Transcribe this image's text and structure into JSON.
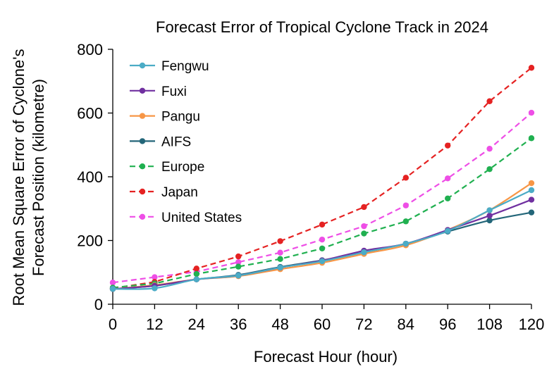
{
  "chart_data": {
    "type": "line",
    "title": "Forecast Error of Tropical Cyclone Track in 2024",
    "xlabel": "Forecast Hour (hour)",
    "ylabel_line1": "Root Mean Square Error of Cyclone's",
    "ylabel_line2": "Forecast Position (kilometre)",
    "x": [
      0,
      12,
      24,
      36,
      48,
      60,
      72,
      84,
      96,
      108,
      120
    ],
    "xlim": [
      0,
      120
    ],
    "ylim": [
      0,
      800
    ],
    "yticks": [
      0,
      200,
      400,
      600,
      800
    ],
    "grid": false,
    "legend_position": "top-left",
    "series": [
      {
        "name": "Fengwu",
        "color": "#4bacc6",
        "style": "solid",
        "smooth": true,
        "values": [
          48,
          50,
          78,
          90,
          115,
          135,
          163,
          190,
          230,
          295,
          358
        ]
      },
      {
        "name": "Fuxi",
        "color": "#7030a0",
        "style": "solid",
        "smooth": true,
        "values": [
          48,
          58,
          78,
          90,
          115,
          137,
          168,
          190,
          233,
          278,
          328
        ]
      },
      {
        "name": "Pangu",
        "color": "#f79646",
        "style": "solid",
        "smooth": true,
        "values": [
          48,
          60,
          78,
          88,
          110,
          130,
          158,
          185,
          233,
          295,
          380
        ]
      },
      {
        "name": "AIFS",
        "color": "#236679",
        "style": "solid",
        "smooth": true,
        "values": [
          48,
          58,
          78,
          92,
          117,
          138,
          163,
          190,
          228,
          263,
          288
        ]
      },
      {
        "name": "Europe",
        "color": "#20b050",
        "style": "dashed",
        "smooth": false,
        "values": [
          52,
          65,
          95,
          118,
          142,
          175,
          222,
          260,
          332,
          424,
          521
        ]
      },
      {
        "name": "Japan",
        "color": "#e52222",
        "style": "dashed",
        "smooth": false,
        "values": [
          50,
          70,
          112,
          150,
          198,
          250,
          305,
          397,
          498,
          637,
          742
        ]
      },
      {
        "name": "United States",
        "color": "#ee4ee6",
        "style": "dashed",
        "smooth": false,
        "values": [
          68,
          85,
          102,
          132,
          162,
          203,
          245,
          310,
          395,
          488,
          601
        ]
      }
    ]
  }
}
